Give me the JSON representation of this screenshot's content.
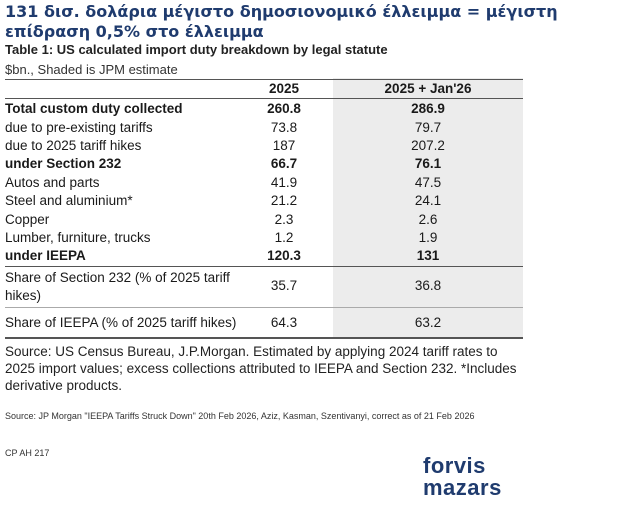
{
  "headline": "131 δισ. δολάρια μέγιστο δημοσιονομικό έλλειμμα = μέγιστη επίδραση 0,5% στο έλλειμμα",
  "table": {
    "title": "Table 1: US calculated import duty breakdown by legal statute",
    "subtitle": "$bn., Shaded is JPM estimate",
    "col1_header": "2025",
    "col2_header": "2025 + Jan'26",
    "rows": [
      {
        "label": "Total custom duty collected",
        "v1": "260.8",
        "v2": "286.9"
      },
      {
        "label": "due to pre-existing tariffs",
        "v1": "73.8",
        "v2": "79.7"
      },
      {
        "label": "due to 2025 tariff hikes",
        "v1": "187",
        "v2": "207.2"
      },
      {
        "label": "under Section 232",
        "v1": "66.7",
        "v2": "76.1"
      },
      {
        "label": "Autos and parts",
        "v1": "41.9",
        "v2": "47.5"
      },
      {
        "label": "Steel and aluminium*",
        "v1": "21.2",
        "v2": "24.1"
      },
      {
        "label": "Copper",
        "v1": "2.3",
        "v2": "2.6"
      },
      {
        "label": "Lumber, furniture, trucks",
        "v1": "1.2",
        "v2": "1.9"
      },
      {
        "label": "under IEEPA",
        "v1": "120.3",
        "v2": "131"
      },
      {
        "label": "Share of Section 232 (% of 2025 tariff hikes)",
        "v1": "35.7",
        "v2": "36.8"
      },
      {
        "label": "Share of IEEPA (% of 2025 tariff hikes)",
        "v1": "64.3",
        "v2": "63.2"
      }
    ]
  },
  "source_note": "Source: US Census Bureau, J.P.Morgan. Estimated by applying 2024 tariff rates to 2025 import values; excess collections attributed to IEEPA and Section 232. *Includes derivative products.",
  "citation": "Source: JP Morgan \"IEEPA Tariffs Struck Down\" 20th Feb 2026, Aziz, Kasman, Szentivanyi, correct as of 21 Feb 2026",
  "code": "CP AH 217",
  "logo": {
    "line1": "forvis",
    "line2": "mazars"
  },
  "colors": {
    "brand": "#1f3b6e",
    "shade": "#ececec"
  }
}
